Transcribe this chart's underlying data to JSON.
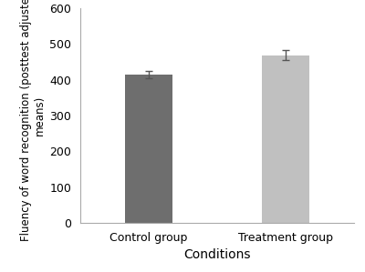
{
  "categories": [
    "Control group",
    "Treatment group"
  ],
  "values": [
    415,
    468
  ],
  "errors": [
    10,
    14
  ],
  "bar_colors": [
    "#6e6e6e",
    "#c0c0c0"
  ],
  "bar_width": 0.35,
  "xlabel": "Conditions",
  "ylabel": "Fluency of word recognition (posttest adjusted\nmeans)",
  "ylim": [
    0,
    600
  ],
  "yticks": [
    0,
    100,
    200,
    300,
    400,
    500,
    600
  ],
  "background_color": "#ffffff",
  "error_color": "#555555",
  "error_capsize": 3,
  "error_linewidth": 1.0,
  "xlabel_fontsize": 10,
  "ylabel_fontsize": 8.5,
  "tick_fontsize": 9,
  "spine_color": "#aaaaaa"
}
